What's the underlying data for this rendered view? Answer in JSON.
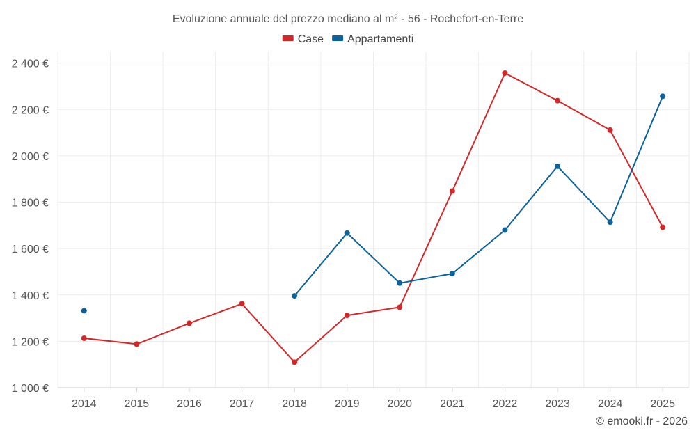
{
  "chart_data": {
    "type": "line",
    "title": "Evoluzione annuale del prezzo mediano al m² - 56 - Rochefort-en-Terre",
    "xlabel": "",
    "ylabel": "",
    "categories": [
      "2014",
      "2015",
      "2016",
      "2017",
      "2018",
      "2019",
      "2020",
      "2021",
      "2022",
      "2023",
      "2024",
      "2025"
    ],
    "ylim": [
      1000,
      2450
    ],
    "yticks": [
      1000,
      1200,
      1400,
      1600,
      1800,
      2000,
      2200,
      2400
    ],
    "ytick_labels": [
      "1 000 €",
      "1 200 €",
      "1 400 €",
      "1 600 €",
      "1 800 €",
      "2 000 €",
      "2 200 €",
      "2 400 €"
    ],
    "grid": true,
    "legend_position": "top-center",
    "series": [
      {
        "name": "Case",
        "color": "#d62728",
        "values": [
          1213,
          1188,
          1278,
          1362,
          1110,
          1312,
          1347,
          1848,
          2357,
          2238,
          2111,
          1692
        ]
      },
      {
        "name": "Appartamenti",
        "color": "#0b629c",
        "values": [
          1332,
          null,
          null,
          null,
          1396,
          1667,
          1451,
          1492,
          1680,
          1955,
          1714,
          2257
        ]
      }
    ]
  },
  "footer": {
    "copyright": "© emooki.fr - 2026"
  }
}
